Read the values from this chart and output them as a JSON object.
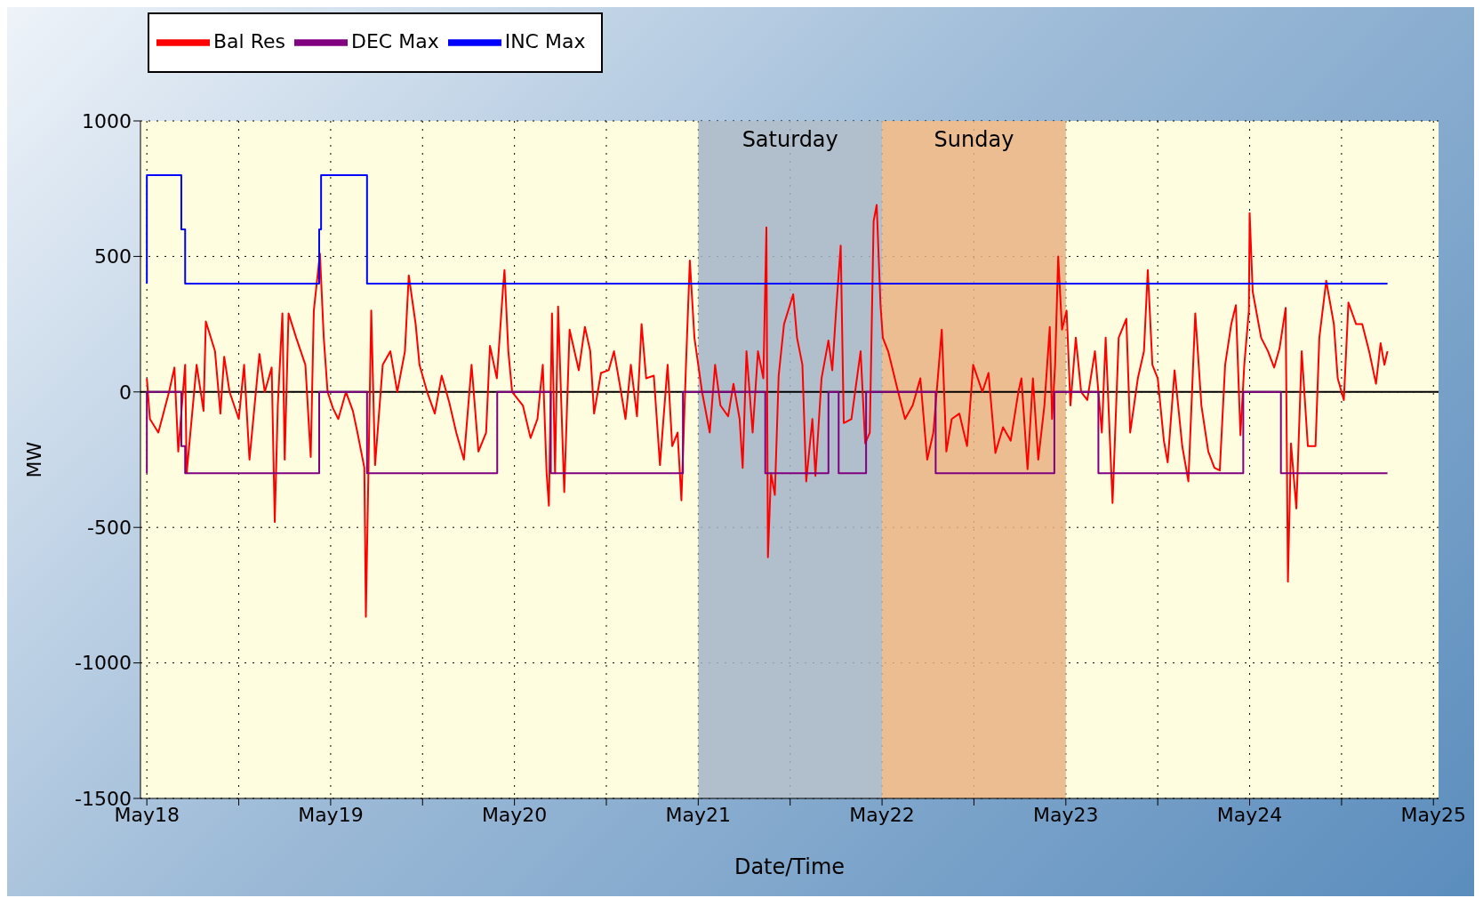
{
  "chart_data": {
    "type": "line",
    "xlabel": "Date/Time",
    "ylabel": "MW",
    "xlim": [
      "--05-17T23:10",
      "--05-25T00:40"
    ],
    "xticks": [
      {
        "value": "--05-18",
        "label": "May18"
      },
      {
        "value": "--05-18T12:00",
        "label": null
      },
      {
        "value": "--05-19",
        "label": "May19"
      },
      {
        "value": "--05-19T12:00",
        "label": null
      },
      {
        "value": "--05-20",
        "label": "May20"
      },
      {
        "value": "--05-20T12:00",
        "label": null
      },
      {
        "value": "--05-21",
        "label": "May21"
      },
      {
        "value": "--05-21T12:00",
        "label": null
      },
      {
        "value": "--05-22",
        "label": "May22"
      },
      {
        "value": "--05-22T12:00",
        "label": null
      },
      {
        "value": "--05-23",
        "label": "May23"
      },
      {
        "value": "--05-23T12:00",
        "label": null
      },
      {
        "value": "--05-24",
        "label": "May24"
      },
      {
        "value": "--05-24T12:00",
        "label": null
      },
      {
        "value": "--05-25",
        "label": "May25"
      }
    ],
    "ylim": [
      -1500,
      1000
    ],
    "yticks": [
      -1500,
      -1000,
      -500,
      0,
      500,
      1000
    ],
    "grid": true,
    "legend": "top left",
    "bands": [
      {
        "axis": "x",
        "from": "--05-21",
        "to": "--05-22",
        "label": "Saturday",
        "color": "#a3b4c8"
      },
      {
        "axis": "x",
        "from": "--05-22",
        "to": "--05-23",
        "label": "Sunday",
        "color": "#e9b283"
      }
    ],
    "ref_lines": [
      {
        "axis": "y",
        "value": 0,
        "color": "#000000"
      }
    ],
    "series": [
      {
        "name": "Bal Res",
        "color": "#ff0000",
        "x": [
          "--05-18T00:00",
          "--05-18T00:24",
          "--05-18T01:30",
          "--05-18T02:54",
          "--05-18T03:36",
          "--05-18T04:06",
          "--05-18T05:00",
          "--05-18T05:12",
          "--05-18T06:30",
          "--05-18T07:24",
          "--05-18T07:42",
          "--05-18T08:54",
          "--05-18T09:36",
          "--05-18T10:06",
          "--05-18T10:48",
          "--05-18T12:00",
          "--05-18T12:42",
          "--05-18T13:24",
          "--05-18T14:42",
          "--05-18T15:24",
          "--05-18T16:18",
          "--05-18T16:42",
          "--05-18T17:06",
          "--05-18T17:42",
          "--05-18T18:00",
          "--05-18T18:30",
          "--05-18T19:30",
          "--05-18T20:42",
          "--05-18T21:24",
          "--05-18T21:48",
          "--05-18T22:36",
          "--05-18T23:06",
          "--05-18T23:36",
          "--05-19T00:18",
          "--05-19T01:00",
          "--05-19T02:00",
          "--05-19T02:54",
          "--05-19T03:30",
          "--05-19T04:24",
          "--05-19T04:36",
          "--05-19T05:18",
          "--05-19T05:48",
          "--05-19T06:48",
          "--05-19T07:48",
          "--05-19T08:42",
          "--05-19T09:42",
          "--05-19T10:12",
          "--05-19T11:06",
          "--05-19T11:36",
          "--05-19T12:36",
          "--05-19T13:36",
          "--05-19T14:30",
          "--05-19T15:30",
          "--05-19T16:24",
          "--05-19T17:24",
          "--05-19T18:24",
          "--05-19T19:18",
          "--05-19T20:18",
          "--05-19T20:48",
          "--05-19T21:42",
          "--05-19T22:30",
          "--05-19T22:42",
          "--05-19T23:12",
          "--05-19T23:42",
          "--05-20T01:06",
          "--05-20T02:06",
          "--05-20T03:00",
          "--05-20T03:42",
          "--05-20T04:12",
          "--05-20T04:30",
          "--05-20T04:54",
          "--05-20T05:18",
          "--05-20T05:42",
          "--05-20T06:30",
          "--05-20T07:12",
          "--05-20T08:24",
          "--05-20T09:12",
          "--05-20T09:54",
          "--05-20T10:24",
          "--05-20T11:18",
          "--05-20T12:18",
          "--05-20T13:00",
          "--05-20T13:48",
          "--05-20T14:30",
          "--05-20T15:12",
          "--05-20T16:00",
          "--05-20T16:36",
          "--05-20T17:12",
          "--05-20T18:12",
          "--05-20T19:00",
          "--05-20T20:00",
          "--05-20T20:36",
          "--05-20T21:18",
          "--05-20T21:48",
          "--05-20T22:24",
          "--05-20T22:54",
          "--05-20T23:30",
          "--05-21T00:00",
          "--05-21T00:30",
          "--05-21T01:30",
          "--05-21T02:12",
          "--05-21T02:54",
          "--05-21T03:54",
          "--05-21T04:36",
          "--05-21T05:24",
          "--05-21T05:48",
          "--05-21T06:18",
          "--05-21T07:06",
          "--05-21T07:48",
          "--05-21T08:30",
          "--05-21T08:54",
          "--05-21T09:06",
          "--05-21T09:30",
          "--05-21T10:00",
          "--05-21T10:30",
          "--05-21T11:12",
          "--05-21T12:24",
          "--05-21T12:54",
          "--05-21T13:36",
          "--05-21T14:06",
          "--05-21T14:54",
          "--05-21T15:18",
          "--05-21T16:06",
          "--05-21T17:00",
          "--05-21T17:30",
          "--05-21T18:00",
          "--05-21T18:36",
          "--05-21T19:00",
          "--05-21T20:00",
          "--05-21T21:12",
          "--05-21T21:48",
          "--05-21T22:24",
          "--05-21T22:54",
          "--05-21T23:18",
          "--05-21T23:48",
          "--05-22T00:06",
          "--05-22T00:48",
          "--05-22T02:06",
          "--05-22T03:00",
          "--05-22T04:00",
          "--05-22T05:00",
          "--05-22T05:54",
          "--05-22T06:42",
          "--05-22T07:48",
          "--05-22T08:24",
          "--05-22T09:06",
          "--05-22T10:06",
          "--05-22T11:06",
          "--05-22T11:54",
          "--05-22T13:06",
          "--05-22T13:54",
          "--05-22T14:48",
          "--05-22T15:48",
          "--05-22T16:48",
          "--05-22T17:48",
          "--05-22T18:12",
          "--05-22T19:00",
          "--05-22T19:42",
          "--05-22T20:24",
          "--05-22T21:12",
          "--05-22T21:54",
          "--05-22T22:12",
          "--05-22T22:36",
          "--05-22T23:00",
          "--05-22T23:30",
          "--05-23T00:06",
          "--05-23T00:36",
          "--05-23T01:18",
          "--05-23T02:00",
          "--05-23T02:48",
          "--05-23T03:48",
          "--05-23T04:42",
          "--05-23T05:12",
          "--05-23T06:06",
          "--05-23T06:54",
          "--05-23T07:54",
          "--05-23T08:24",
          "--05-23T09:24",
          "--05-23T10:12",
          "--05-23T10:42",
          "--05-23T11:18",
          "--05-23T12:00",
          "--05-23T12:48",
          "--05-23T13:18",
          "--05-23T14:12",
          "--05-23T15:12",
          "--05-23T16:00",
          "--05-23T16:54",
          "--05-23T17:42",
          "--05-23T18:36",
          "--05-23T19:24",
          "--05-23T20:06",
          "--05-23T20:48",
          "--05-23T21:36",
          "--05-23T22:12",
          "--05-23T22:48",
          "--05-23T23:18",
          "--05-23T23:54",
          "--05-24T00:00",
          "--05-24T00:24",
          "--05-24T01:30",
          "--05-24T02:24",
          "--05-24T03:12",
          "--05-24T03:54",
          "--05-24T04:42",
          "--05-24T05:00",
          "--05-24T05:24",
          "--05-24T06:06",
          "--05-24T06:48",
          "--05-24T07:36",
          "--05-24T08:36",
          "--05-24T09:06",
          "--05-24T10:00",
          "--05-24T11:00",
          "--05-24T11:30",
          "--05-24T12:18",
          "--05-24T12:54",
          "--05-24T13:54",
          "--05-24T14:42",
          "--05-24T15:36",
          "--05-24T16:30",
          "--05-24T17:06",
          "--05-24T17:36",
          "--05-24T18:00"
        ],
        "values": [
          50,
          -100,
          -150,
          0,
          90,
          -220,
          100,
          -300,
          100,
          -70,
          260,
          150,
          -80,
          130,
          0,
          -100,
          100,
          -250,
          140,
          0,
          90,
          -480,
          -50,
          290,
          -250,
          290,
          200,
          100,
          -240,
          300,
          510,
          200,
          0,
          -60,
          -100,
          0,
          -70,
          -150,
          -280,
          -830,
          300,
          -270,
          100,
          150,
          0,
          150,
          430,
          250,
          100,
          0,
          -80,
          60,
          -40,
          -150,
          -250,
          100,
          -220,
          -150,
          170,
          50,
          380,
          450,
          150,
          0,
          -50,
          -170,
          -100,
          100,
          -300,
          -420,
          290,
          -300,
          315,
          -370,
          230,
          80,
          240,
          150,
          -80,
          70,
          80,
          150,
          20,
          -100,
          100,
          -90,
          250,
          50,
          60,
          -270,
          100,
          -200,
          -150,
          -400,
          100,
          485,
          200,
          100,
          0,
          -150,
          100,
          -50,
          -90,
          30,
          -100,
          -280,
          150,
          -150,
          150,
          50,
          607,
          -610,
          -300,
          -380,
          60,
          250,
          360,
          200,
          100,
          -330,
          -100,
          -310,
          50,
          190,
          80,
          300,
          540,
          -115,
          -100,
          150,
          -190,
          -150,
          630,
          690,
          320,
          200,
          150,
          0,
          -100,
          -50,
          50,
          -250,
          -150,
          230,
          -220,
          -100,
          -80,
          -200,
          100,
          0,
          70,
          -225,
          -130,
          -180,
          0,
          50,
          -285,
          50,
          -250,
          -50,
          240,
          -100,
          100,
          500,
          230,
          300,
          -50,
          200,
          0,
          -30,
          150,
          -150,
          200,
          -410,
          200,
          270,
          -150,
          50,
          150,
          450,
          100,
          50,
          -180,
          -260,
          80,
          -200,
          -330,
          290,
          -50,
          -220,
          -280,
          -290,
          100,
          250,
          320,
          -160,
          100,
          300,
          660,
          370,
          200,
          150,
          90,
          160,
          310,
          -700,
          -190,
          -430,
          150,
          -200,
          -200,
          200,
          410,
          250,
          50,
          -30,
          330,
          250,
          250,
          150,
          30,
          180,
          100,
          150
        ]
      },
      {
        "name": "INC Max",
        "color": "#0000ff",
        "x": [
          "--05-18T00:00",
          "--05-18T00:00",
          "--05-18T04:30",
          "--05-18T04:30",
          "--05-18T05:00",
          "--05-18T05:00",
          "--05-18T22:30",
          "--05-18T22:30",
          "--05-18T22:45",
          "--05-18T22:45",
          "--05-19T04:45",
          "--05-19T04:45",
          "--05-24T18:00"
        ],
        "values": [
          400,
          800,
          800,
          600,
          600,
          400,
          400,
          600,
          600,
          800,
          800,
          400,
          400
        ]
      },
      {
        "name": "DEC Max",
        "color": "#800080",
        "x": [
          "--05-18T00:00",
          "--05-18T00:00",
          "--05-18T04:30",
          "--05-18T04:30",
          "--05-18T05:00",
          "--05-18T05:00",
          "--05-18T22:30",
          "--05-18T22:30",
          "--05-19T04:45",
          "--05-19T04:45",
          "--05-19T21:45",
          "--05-19T21:45",
          "--05-20T04:45",
          "--05-20T04:45",
          "--05-20T22:00",
          "--05-20T22:00",
          "--05-21T08:45",
          "--05-21T08:45",
          "--05-21T17:00",
          "--05-21T17:00",
          "--05-21T18:20",
          "--05-21T18:20",
          "--05-21T21:55",
          "--05-21T21:55",
          "--05-22T07:00",
          "--05-22T07:00",
          "--05-22T22:30",
          "--05-22T22:30",
          "--05-23T04:15",
          "--05-23T04:15",
          "--05-23T23:10",
          "--05-23T23:10",
          "--05-24T04:05",
          "--05-24T04:05",
          "--05-24T18:00"
        ],
        "values": [
          -300,
          0,
          0,
          -200,
          -200,
          -300,
          -300,
          0,
          0,
          -300,
          -300,
          0,
          0,
          -300,
          -300,
          0,
          0,
          -300,
          -300,
          0,
          0,
          -300,
          -300,
          0,
          0,
          -300,
          -300,
          0,
          0,
          -300,
          -300,
          0,
          0,
          -300,
          -300
        ]
      }
    ]
  }
}
